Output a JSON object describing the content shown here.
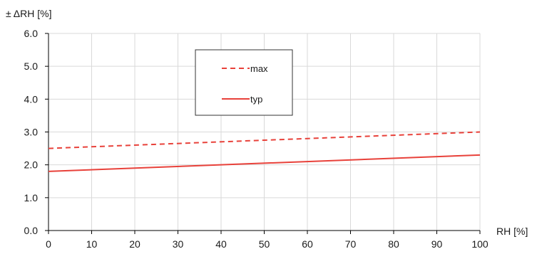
{
  "chart_data": {
    "type": "line",
    "title": "",
    "ylabel": "± ΔRH [%]",
    "xlabel": "RH [%]",
    "xlim": [
      0,
      100
    ],
    "ylim": [
      0,
      6
    ],
    "x_ticks": [
      0,
      10,
      20,
      30,
      40,
      50,
      60,
      70,
      80,
      90,
      100
    ],
    "x_tick_labels": [
      "0",
      "10",
      "20",
      "30",
      "40",
      "50",
      "60",
      "70",
      "80",
      "90",
      "100"
    ],
    "y_ticks": [
      0,
      1,
      2,
      3,
      4,
      5,
      6
    ],
    "y_tick_labels": [
      "0.0",
      "1.0",
      "2.0",
      "3.0",
      "4.0",
      "5.0",
      "6.0"
    ],
    "grid": true,
    "legend_position": "top-center",
    "series": [
      {
        "name": "max",
        "x": [
          0,
          100
        ],
        "y": [
          2.5,
          3.0
        ],
        "color": "#e8413a",
        "style": "dashed"
      },
      {
        "name": "typ",
        "x": [
          0,
          100
        ],
        "y": [
          1.8,
          2.3
        ],
        "color": "#e8413a",
        "style": "solid"
      }
    ]
  }
}
